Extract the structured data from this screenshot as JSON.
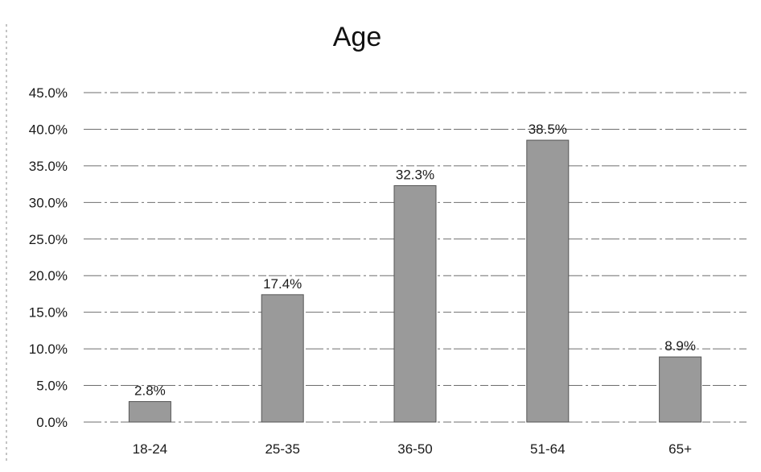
{
  "chart_data": {
    "type": "bar",
    "title": "Age",
    "categories": [
      "18-24",
      "25-35",
      "36-50",
      "51-64",
      "65+"
    ],
    "values": [
      2.8,
      17.4,
      32.3,
      38.5,
      8.9
    ],
    "data_labels": [
      "2.8%",
      "17.4%",
      "32.3%",
      "38.5%",
      "8.9%"
    ],
    "ylim": [
      0,
      45
    ],
    "yticks": [
      "0.0%",
      "5.0%",
      "10.0%",
      "15.0%",
      "20.0%",
      "25.0%",
      "30.0%",
      "35.0%",
      "40.0%",
      "45.0%"
    ],
    "xlabel": "",
    "ylabel": "",
    "grid": true,
    "legend": "none",
    "colors": {
      "bar": "#9a9a9a",
      "bar_edge": "#555555",
      "grid": "#555555"
    }
  }
}
